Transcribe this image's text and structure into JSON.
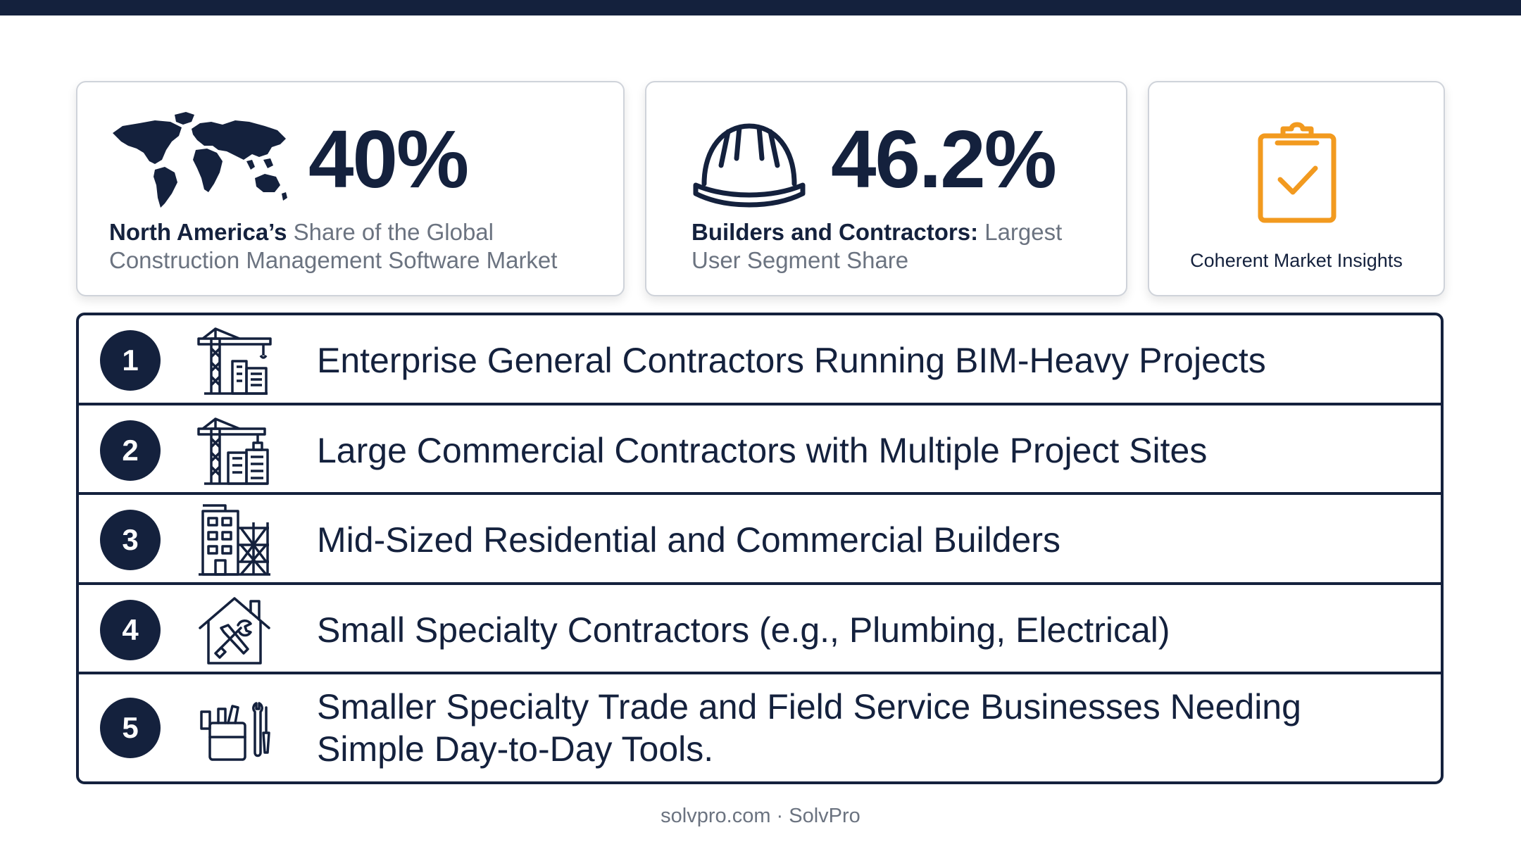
{
  "stats": [
    {
      "value": "40%",
      "desc_bold": "North America’s",
      "desc_rest": " Share of the Global Construction Management Software Market",
      "icon": "world-map-icon"
    },
    {
      "value": "46.2%",
      "desc_bold": "Builders and Contractors:",
      "desc_rest": " Largest User Segment Share",
      "icon": "hard-hat-icon"
    }
  ],
  "source": {
    "label": "Coherent Market Insights",
    "icon": "clipboard-check-icon"
  },
  "segments": [
    {
      "number": "1",
      "text": "Enterprise General Contractors Running BIM-Heavy Projects",
      "icon": "crane-tower-icon"
    },
    {
      "number": "2",
      "text": "Large Commercial Contractors with Multiple Project Sites",
      "icon": "crane-buildings-icon"
    },
    {
      "number": "3",
      "text": "Mid-Sized Residential and Commercial Builders",
      "icon": "building-scaffold-icon"
    },
    {
      "number": "4",
      "text": "Small Specialty Contractors (e.g., Plumbing, Electrical)",
      "icon": "house-tools-icon"
    },
    {
      "number": "5",
      "text": "Smaller Specialty Trade and Field Service Businesses Needing Simple Day-to-Day Tools.",
      "icon": "toolbox-icon"
    }
  ],
  "footer": {
    "text": "solvpro.com · SolvPro"
  },
  "colors": {
    "navy": "#14213d",
    "accent": "#f29a1f",
    "muted": "#6b7380"
  }
}
